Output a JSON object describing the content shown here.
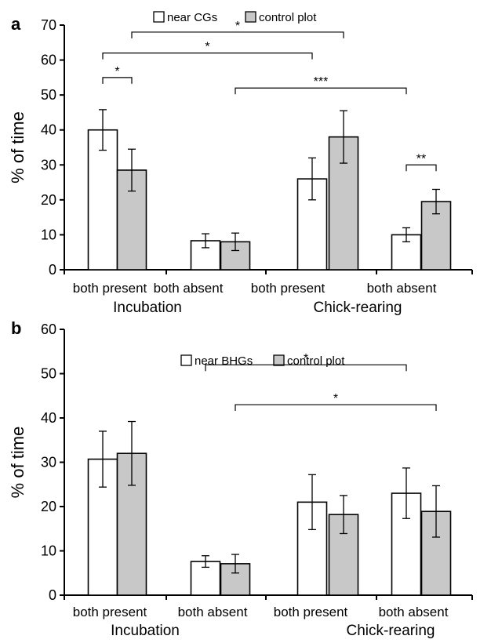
{
  "chart_data": [
    {
      "panel": "a",
      "type": "bar",
      "ylabel": "% of time",
      "ylim": [
        0,
        70
      ],
      "yticks": [
        0,
        10,
        20,
        30,
        40,
        50,
        60,
        70
      ],
      "categories": [
        "both present",
        "both absent",
        "both present",
        "both absent"
      ],
      "groups": [
        "Incubation",
        "Chick-rearing"
      ],
      "legend": {
        "position": "top-center"
      },
      "series": [
        {
          "name": "near CGs",
          "color": "#ffffff",
          "values": [
            40,
            8.3,
            26,
            10
          ],
          "errors": [
            5.8,
            2,
            6,
            2
          ]
        },
        {
          "name": "control plot",
          "color": "#c8c8c8",
          "values": [
            28.5,
            8,
            38,
            19.5
          ],
          "errors": [
            6,
            2.5,
            7.5,
            3.5
          ]
        }
      ],
      "significance": [
        {
          "label": "*",
          "from": [
            0,
            0
          ],
          "to": [
            0,
            1
          ],
          "y": 55
        },
        {
          "label": "*",
          "from": [
            0,
            0
          ],
          "to": [
            2,
            0
          ],
          "y": 62
        },
        {
          "label": "*",
          "from": [
            0,
            1
          ],
          "to": [
            2,
            1
          ],
          "y": 68
        },
        {
          "label": "***",
          "from": [
            1,
            1
          ],
          "to": [
            3,
            0
          ],
          "y": 52
        },
        {
          "label": "**",
          "from": [
            3,
            0
          ],
          "to": [
            3,
            1
          ],
          "y": 30
        }
      ],
      "grid": false
    },
    {
      "panel": "b",
      "type": "bar",
      "ylabel": "% of time",
      "ylim": [
        0,
        60
      ],
      "yticks": [
        0,
        10,
        20,
        30,
        40,
        50,
        60
      ],
      "categories": [
        "both present",
        "both absent",
        "both present",
        "both absent"
      ],
      "groups": [
        "Incubation",
        "Chick-rearing"
      ],
      "legend": {
        "position": "top-center"
      },
      "series": [
        {
          "name": "near BHGs",
          "color": "#ffffff",
          "values": [
            30.7,
            7.6,
            21,
            23
          ],
          "errors": [
            6.3,
            1.3,
            6.2,
            5.7
          ]
        },
        {
          "name": "control plot",
          "color": "#c8c8c8",
          "values": [
            32,
            7.1,
            18.2,
            18.9
          ],
          "errors": [
            7.2,
            2.1,
            4.3,
            5.8
          ]
        }
      ],
      "significance": [
        {
          "label": "*",
          "from": [
            1,
            0
          ],
          "to": [
            3,
            0
          ],
          "y": 52
        },
        {
          "label": "*",
          "from": [
            1,
            1
          ],
          "to": [
            3,
            1
          ],
          "y": 43
        }
      ],
      "grid": false
    }
  ]
}
